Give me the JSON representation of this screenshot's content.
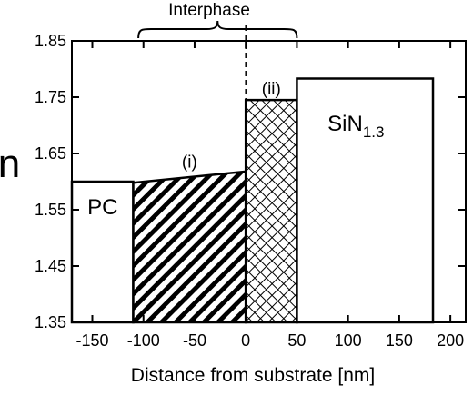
{
  "chart_data": {
    "type": "bar",
    "xlabel": "Distance from substrate [nm]",
    "ylabel": "n",
    "xlim": [
      -170,
      215
    ],
    "ylim": [
      1.35,
      1.85
    ],
    "x_ticks": [
      -150,
      -100,
      -50,
      0,
      50,
      100,
      150,
      200
    ],
    "y_ticks": [
      1.35,
      1.45,
      1.55,
      1.65,
      1.75,
      1.85
    ],
    "bracket_label": "Interphase",
    "bracket_range": [
      -105,
      50
    ],
    "dashed_line_x": 0,
    "regions": [
      {
        "label": "PC",
        "x0": -170,
        "x1": -110,
        "n0": 1.6,
        "n1": 1.6,
        "fill": "none"
      },
      {
        "label": "(i)",
        "x0": -110,
        "x1": 0,
        "n0": 1.598,
        "n1": 1.618,
        "fill": "diagonal-hatch"
      },
      {
        "label": "(ii)",
        "x0": 0,
        "x1": 50,
        "n0": 1.745,
        "n1": 1.745,
        "fill": "crosshatch"
      },
      {
        "label": "SiN",
        "label_sub": "1.3",
        "x0": 50,
        "x1": 183,
        "n0": 1.783,
        "n1": 1.783,
        "fill": "none"
      }
    ]
  }
}
